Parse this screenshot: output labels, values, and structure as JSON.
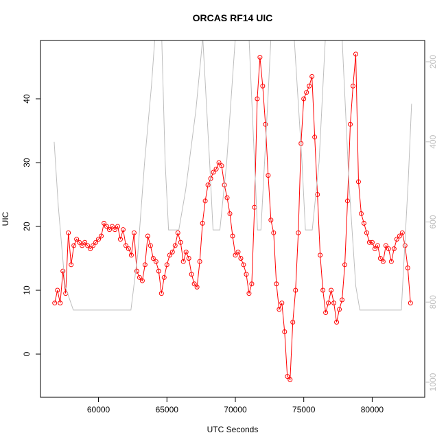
{
  "chart_data": {
    "type": "line",
    "title": "ORCAS RF14 UIC",
    "x_label": "UTC Seconds",
    "y_label": "UIC",
    "xlim": [
      55760,
      83840
    ],
    "ylim": [
      -6.77,
      49.14
    ],
    "y2lim": [
      1037.7,
      146.9
    ],
    "xticks": [
      60000,
      65000,
      70000,
      75000,
      80000
    ],
    "yticks": [
      0,
      10,
      20,
      30,
      40
    ],
    "y2ticks": [
      200,
      400,
      600,
      800,
      1000
    ],
    "x": [
      56800,
      57000,
      57200,
      57400,
      57600,
      57800,
      58000,
      58200,
      58400,
      58600,
      58800,
      59000,
      59200,
      59400,
      59600,
      59800,
      60000,
      60200,
      60400,
      60600,
      60800,
      61000,
      61200,
      61400,
      61600,
      61800,
      62000,
      62200,
      62400,
      62600,
      62800,
      63000,
      63200,
      63400,
      63600,
      63800,
      64000,
      64200,
      64400,
      64600,
      64800,
      65000,
      65200,
      65400,
      65600,
      65800,
      66000,
      66200,
      66400,
      66600,
      66800,
      67000,
      67200,
      67400,
      67600,
      67800,
      68000,
      68200,
      68400,
      68600,
      68800,
      69000,
      69200,
      69400,
      69600,
      69800,
      70000,
      70200,
      70400,
      70600,
      70800,
      71000,
      71200,
      71400,
      71600,
      71800,
      72000,
      72200,
      72400,
      72600,
      72800,
      73000,
      73200,
      73400,
      73600,
      73800,
      74000,
      74200,
      74400,
      74600,
      74800,
      75000,
      75200,
      75400,
      75600,
      75800,
      76000,
      76200,
      76400,
      76600,
      76800,
      77000,
      77200,
      77400,
      77600,
      77800,
      78000,
      78200,
      78400,
      78600,
      78800,
      79000,
      79200,
      79400,
      79600,
      79800,
      80000,
      80200,
      80400,
      80600,
      80800,
      81000,
      81200,
      81400,
      81600,
      81800,
      82000,
      82200,
      82400,
      82600,
      82800
    ],
    "series": [
      {
        "color": "#ff0000",
        "marker": "circle",
        "values": [
          8,
          10,
          8,
          13,
          9.5,
          19,
          14,
          17,
          18,
          17.5,
          17,
          17.5,
          17,
          16.5,
          17,
          17.5,
          18,
          18.5,
          20.5,
          20,
          19.5,
          20,
          19.5,
          20,
          18,
          19.5,
          17,
          16.5,
          15.5,
          19,
          13,
          12,
          11.5,
          14,
          18.5,
          17,
          15,
          14.5,
          13,
          9.5,
          12,
          14,
          15.5,
          16,
          17,
          19,
          17.5,
          14.5,
          16,
          15,
          12.5,
          11,
          10.5,
          14.5,
          20.5,
          24,
          26.5,
          27.5,
          28.5,
          29,
          30,
          29.5,
          26.5,
          24.5,
          22,
          18.5,
          15.5,
          16,
          15,
          14,
          12.5,
          9.5,
          11,
          23,
          40,
          46.5,
          42,
          36,
          28,
          21,
          19,
          11,
          7,
          8,
          3.5,
          -3.5,
          -4,
          5,
          10,
          19,
          33,
          40,
          41,
          42,
          43.5,
          34,
          25,
          15.5,
          10,
          6.5,
          8,
          10,
          8,
          5,
          7,
          8.5,
          14,
          24,
          36,
          42,
          47,
          27,
          22,
          20.5,
          19,
          17.5,
          17.5,
          16.5,
          17,
          15,
          14.5,
          17,
          16.5,
          14.5,
          16.5,
          18,
          18.5,
          19,
          17,
          13.5,
          8
        ]
      },
      {
        "color": "#bebebe",
        "axis": "y2",
        "x": [
          56760,
          57060,
          57560,
          58160,
          62370,
          62870,
          63370,
          63870,
          64120,
          64620,
          64870,
          65120,
          65870,
          66370,
          67120,
          67620,
          68120,
          68370,
          68870,
          69370,
          70000,
          71000,
          71620,
          71870,
          72370,
          72600,
          74300,
          74870,
          75120,
          75620,
          76120,
          76580,
          77800,
          78300,
          78800,
          79100,
          82130,
          82630,
          82880
        ],
        "values": [
          400,
          560,
          760,
          820,
          820,
          680,
          450,
          260,
          140,
          140,
          450,
          620,
          620,
          520,
          320,
          140,
          450,
          620,
          620,
          450,
          140,
          140,
          620,
          620,
          300,
          140,
          140,
          450,
          620,
          620,
          450,
          140,
          140,
          500,
          760,
          820,
          820,
          500,
          305
        ]
      }
    ]
  }
}
